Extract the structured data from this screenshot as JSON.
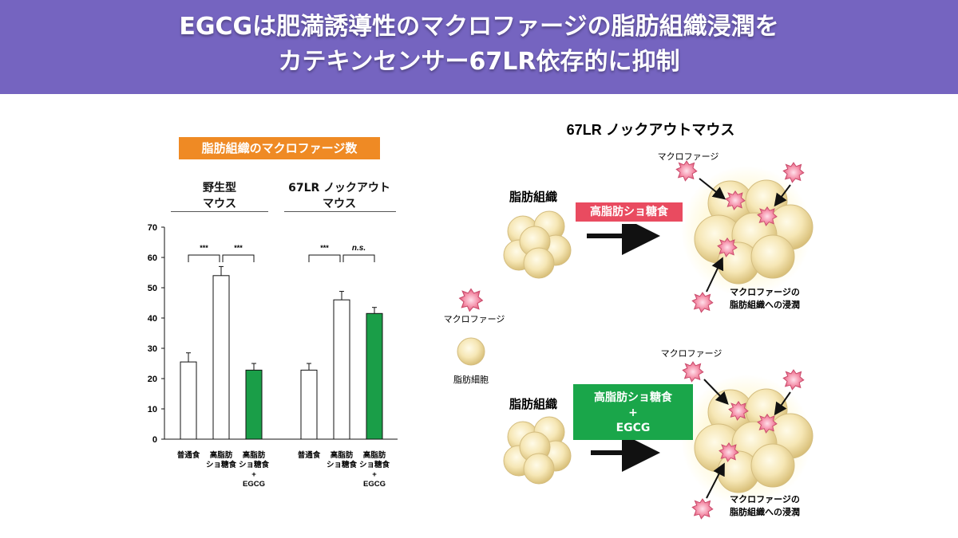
{
  "header": {
    "title_line1": "EGCGは肥満誘導性のマクロファージの脂肪組織浸潤を",
    "title_line2": "カテキンセンサー67LR依存的に抑制"
  },
  "colors": {
    "banner": "#7564c0",
    "chart_title_box": "#ef8a24",
    "egcg_bar": "#1a9e48",
    "diet_box_hfd": "#e94b60",
    "diet_box_egcg": "#1aa64a"
  },
  "chart_data": {
    "type": "bar",
    "title": "脂肪組織のマクロファージ数",
    "ylim": [
      0,
      70
    ],
    "yticks": [
      "0",
      "10",
      "20",
      "30",
      "40",
      "50",
      "60",
      "70"
    ],
    "groups": [
      {
        "label_line1": "野生型",
        "label_line2": "マウス",
        "bars": [
          {
            "category": [
              "普通食"
            ],
            "value": 25.5,
            "error": 3.0,
            "color": "#ffffff"
          },
          {
            "category": [
              "高脂肪",
              "ショ糖食"
            ],
            "value": 54.0,
            "error": 3.0,
            "color": "#ffffff"
          },
          {
            "category": [
              "高脂肪",
              "ショ糖食",
              "+",
              "EGCG"
            ],
            "value": 22.8,
            "error": 2.2,
            "color": "#1a9e48"
          }
        ],
        "significance": [
          "***",
          "***"
        ]
      },
      {
        "label_line1": "67LR ノックアウト",
        "label_line2": "マウス",
        "bars": [
          {
            "category": [
              "普通食"
            ],
            "value": 22.8,
            "error": 2.2,
            "color": "#ffffff"
          },
          {
            "category": [
              "高脂肪",
              "ショ糖食"
            ],
            "value": 46.0,
            "error": 2.8,
            "color": "#ffffff"
          },
          {
            "category": [
              "高脂肪",
              "ショ糖食",
              "+",
              "EGCG"
            ],
            "value": 41.5,
            "error": 2.0,
            "color": "#1a9e48"
          }
        ],
        "significance": [
          "***",
          "n.s."
        ]
      }
    ]
  },
  "diagram": {
    "title": "67LR ノックアウトマウス",
    "legend_macrophage": "マクロファージ",
    "legend_adipocyte": "脂肪細胞",
    "top": {
      "tissue_label": "脂肪組織",
      "diet_label": "高脂肪ショ糖食",
      "macrophage_label": "マクロファージ",
      "infiltration_line1": "マクロファージの",
      "infiltration_line2": "脂肪組織への浸潤"
    },
    "bottom": {
      "tissue_label": "脂肪組織",
      "diet_line1": "高脂肪ショ糖食",
      "diet_line2": "+",
      "diet_line3": "EGCG",
      "macrophage_label": "マクロファージ",
      "infiltration_line1": "マクロファージの",
      "infiltration_line2": "脂肪組織への浸潤"
    }
  }
}
